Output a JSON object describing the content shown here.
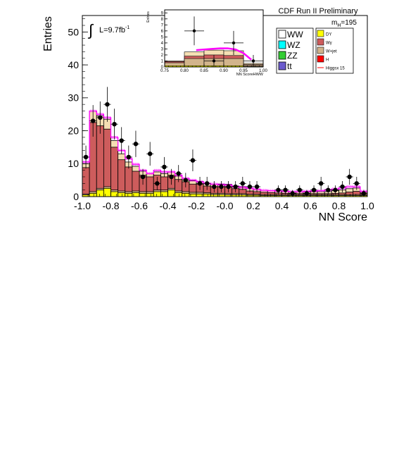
{
  "chart_data": [
    {
      "type": "area",
      "title": "CDF Run II Preliminary",
      "xlabel": "NN Score",
      "ylabel": "Entries",
      "annotations": {
        "lumi": "L=9.7fb",
        "lumi_sup": "-1",
        "mass": "m",
        "mass_sub": "H",
        "mass_val": "=195",
        "integral": "∫"
      },
      "xlim": [
        -1.0,
        1.0
      ],
      "ylim": [
        0,
        55
      ],
      "x_ticks": [
        "-1.0",
        "-0.8",
        "-0.6",
        "-0.4",
        "-0.2",
        "-0.0",
        "0.2",
        "0.4",
        "0.6",
        "0.8",
        "1.0"
      ],
      "y_ticks": [
        "0",
        "10",
        "20",
        "30",
        "40",
        "50"
      ],
      "bin_edges": [
        -1.0,
        -0.95,
        -0.9,
        -0.85,
        -0.8,
        -0.75,
        -0.7,
        -0.65,
        -0.6,
        -0.55,
        -0.5,
        -0.45,
        -0.4,
        -0.35,
        -0.3,
        -0.25,
        -0.2,
        -0.15,
        -0.1,
        -0.05,
        0.0,
        0.05,
        0.1,
        0.15,
        0.2,
        0.25,
        0.3,
        0.35,
        0.4,
        0.45,
        0.5,
        0.55,
        0.6,
        0.65,
        0.7,
        0.75,
        0.8,
        0.85,
        0.9,
        0.95,
        1.0
      ],
      "stack": [
        {
          "name": "DY",
          "color": "#ffff00",
          "values": [
            0.5,
            1.0,
            2.0,
            2.5,
            1.5,
            1.2,
            1.0,
            1.2,
            1.0,
            1.0,
            1.5,
            1.5,
            2.0,
            1.2,
            1.0,
            0.8,
            0.8,
            0.8,
            0.6,
            0.6,
            0.5,
            0.5,
            0.5,
            0.4,
            0.4,
            0.3,
            0.3,
            0.3,
            0.3,
            0.3,
            0.3,
            0.3,
            0.3,
            0.3,
            0.3,
            0.3,
            0.3,
            0.3,
            0.3,
            0.3
          ]
        },
        {
          "name": "Wjet",
          "color": "#d2b48c",
          "values": [
            0.3,
            0.5,
            0.5,
            0.5,
            0.5,
            0.5,
            0.5,
            0.5,
            0.5,
            0.5,
            0.5,
            0.5,
            0.5,
            0.5,
            0.5,
            0.5,
            0.5,
            0.4,
            0.4,
            0.4,
            0.4,
            0.4,
            0.4,
            0.3,
            0.3,
            0.3,
            0.3,
            0.3,
            0.3,
            0.3,
            0.3,
            0.3,
            0.3,
            0.3,
            0.3,
            0.3,
            0.3,
            0.3,
            0.3,
            0.3
          ]
        },
        {
          "name": "Wgamma",
          "color": "#cd5c5c",
          "values": [
            8.0,
            21.0,
            19.0,
            17.5,
            13.0,
            9.5,
            7.5,
            6.0,
            5.0,
            4.5,
            4.5,
            4.0,
            4.0,
            3.5,
            3.0,
            2.5,
            2.5,
            2.0,
            2.0,
            2.0,
            2.0,
            1.5,
            1.3,
            1.0,
            0.8,
            0.7,
            0.6,
            0.5,
            0.4,
            0.3,
            0.3,
            0.3,
            0.3,
            0.3,
            0.3,
            0.4,
            0.5,
            0.8,
            1.0,
            0.5
          ]
        },
        {
          "name": "WW",
          "color": "#f5deb3",
          "values": [
            1.2,
            3.5,
            3.0,
            3.0,
            2.0,
            1.8,
            1.5,
            1.5,
            1.2,
            1.0,
            1.0,
            1.0,
            1.0,
            1.0,
            1.0,
            1.0,
            0.8,
            0.8,
            0.8,
            0.8,
            0.8,
            0.8,
            0.8,
            0.8,
            0.7,
            0.6,
            0.6,
            0.6,
            0.6,
            0.6,
            0.6,
            0.6,
            0.6,
            0.6,
            0.6,
            0.8,
            0.9,
            1.0,
            1.0,
            0.5
          ]
        }
      ],
      "signal": {
        "name": "Higgsx 15",
        "color": "#ff00ff",
        "values": [
          10.5,
          26.0,
          25.0,
          24.0,
          18.0,
          14.0,
          11.5,
          9.8,
          8.0,
          7.0,
          8.0,
          7.5,
          7.5,
          6.5,
          5.5,
          5.0,
          4.5,
          4.0,
          3.8,
          3.6,
          3.5,
          3.0,
          2.8,
          2.5,
          2.2,
          1.9,
          1.8,
          1.7,
          1.6,
          1.5,
          1.5,
          1.6,
          1.7,
          1.8,
          2.0,
          2.3,
          2.6,
          3.0,
          3.0,
          1.6
        ]
      },
      "data_points": {
        "x": [
          -0.975,
          -0.925,
          -0.875,
          -0.825,
          -0.775,
          -0.725,
          -0.675,
          -0.625,
          -0.575,
          -0.525,
          -0.475,
          -0.425,
          -0.375,
          -0.325,
          -0.275,
          -0.225,
          -0.175,
          -0.125,
          -0.075,
          -0.025,
          0.025,
          0.075,
          0.125,
          0.175,
          0.225,
          0.375,
          0.425,
          0.475,
          0.525,
          0.575,
          0.625,
          0.675,
          0.725,
          0.775,
          0.825,
          0.875,
          0.925,
          0.975
        ],
        "y": [
          12,
          23,
          24,
          28,
          22,
          17,
          12,
          16,
          6,
          13,
          4,
          9,
          6,
          7,
          5,
          11,
          4,
          4,
          3,
          3,
          3,
          3,
          4,
          3,
          3,
          2,
          2,
          1,
          2,
          1,
          2,
          4,
          2,
          2,
          3,
          6,
          4,
          1
        ],
        "err": [
          3.5,
          4.8,
          4.9,
          5.3,
          4.7,
          4.1,
          3.5,
          4.0,
          2.4,
          3.6,
          2.0,
          3.0,
          2.4,
          2.6,
          2.2,
          3.3,
          2.0,
          2.0,
          1.7,
          1.7,
          1.7,
          1.7,
          2.0,
          1.7,
          1.7,
          1.4,
          1.4,
          1.0,
          1.4,
          1.0,
          1.4,
          2.0,
          1.4,
          1.4,
          1.7,
          2.4,
          2.0,
          1.0
        ]
      },
      "legend_left": [
        {
          "label": "WW",
          "color": "#ffffff"
        },
        {
          "label": "WZ",
          "color": "#00ffff"
        },
        {
          "label": "ZZ",
          "color": "#33cc33"
        },
        {
          "label": "tt",
          "color": "#6a5acd"
        }
      ],
      "legend_right": [
        {
          "label": "DY",
          "color": "#ffff00",
          "kind": "box"
        },
        {
          "label": "Wγ",
          "color": "#cd5c5c",
          "kind": "box"
        },
        {
          "label": "W+jet",
          "color": "#d2b48c",
          "kind": "box"
        },
        {
          "label": "H",
          "color": "#ff0000",
          "kind": "box"
        },
        {
          "label": "Higgsx 15",
          "color": "#ff0000",
          "kind": "line"
        }
      ],
      "legend_placement": "top-right"
    },
    {
      "type": "area",
      "title": "",
      "xlabel": "NN ScoreHWW",
      "ylabel": "Entries",
      "xlim": [
        0.75,
        1.0
      ],
      "ylim": [
        0,
        9.5
      ],
      "x_ticks": [
        "0.75",
        "0.80",
        "0.85",
        "0.90",
        "0.95",
        "1.00"
      ],
      "y_ticks": [
        "0",
        "1",
        "2",
        "3",
        "4",
        "5",
        "6",
        "7",
        "8",
        "9"
      ],
      "bin_edges": [
        0.75,
        0.8,
        0.85,
        0.9,
        0.95,
        1.0
      ],
      "stack": [
        {
          "name": "DY",
          "color": "#ffff00",
          "values": [
            0.2,
            0.2,
            0.2,
            0.2,
            0.1
          ]
        },
        {
          "name": "Wjet",
          "color": "#d2b48c",
          "values": [
            0.5,
            1.2,
            1.2,
            1.2,
            0.2
          ]
        },
        {
          "name": "Wgamma",
          "color": "#cd5c5c",
          "values": [
            0.2,
            0.4,
            0.6,
            0.5,
            0.1
          ]
        },
        {
          "name": "WW",
          "color": "#f5deb3",
          "values": [
            0.1,
            0.7,
            0.8,
            0.8,
            0.2
          ]
        }
      ],
      "signal_curve": {
        "color": "#ff00ff",
        "x": [
          0.83,
          0.85,
          0.87,
          0.89,
          0.91,
          0.93,
          0.95,
          0.97
        ],
        "y": [
          2.8,
          2.9,
          3.0,
          3.1,
          3.1,
          2.9,
          2.3,
          1.2
        ]
      },
      "data_points": {
        "x": [
          0.775,
          0.825,
          0.875,
          0.925,
          0.975
        ],
        "y": [
          0,
          6,
          1,
          4,
          1
        ],
        "err": [
          0,
          2.4,
          1.0,
          2.0,
          1.0
        ]
      }
    }
  ]
}
